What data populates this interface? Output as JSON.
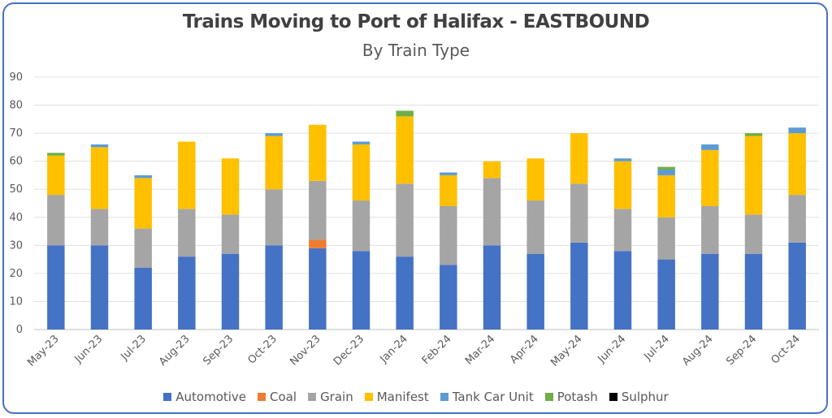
{
  "chart_data": {
    "type": "bar",
    "stacked": true,
    "title": "Trains Moving to Port of Halifax - EASTBOUND",
    "subtitle": "By Train Type",
    "xlabel": "",
    "ylabel": "",
    "ylim": [
      0,
      90
    ],
    "yticks": [
      "0",
      "10",
      "20",
      "30",
      "40",
      "50",
      "60",
      "70",
      "80",
      "90"
    ],
    "grid": true,
    "legend_position": "bottom",
    "categories": [
      "May-23",
      "Jun-23",
      "Jul-23",
      "Aug-23",
      "Sep-23",
      "Oct-23",
      "Nov-23",
      "Dec-23",
      "Jan-24",
      "Feb-24",
      "Mar-24",
      "Apr-24",
      "May-24",
      "Jun-24",
      "Jul-24",
      "Aug-24",
      "Sep-24",
      "Oct-24"
    ],
    "series": [
      {
        "name": "Automotive",
        "color": "#4472c4",
        "values": [
          30,
          30,
          22,
          26,
          27,
          30,
          29,
          28,
          26,
          23,
          30,
          27,
          31,
          28,
          25,
          27,
          27,
          31
        ]
      },
      {
        "name": "Coal",
        "color": "#ed7d31",
        "values": [
          0,
          0,
          0,
          0,
          0,
          0,
          3,
          0,
          0,
          0,
          0,
          0,
          0,
          0,
          0,
          0,
          0,
          0
        ]
      },
      {
        "name": "Grain",
        "color": "#a5a5a5",
        "values": [
          18,
          13,
          14,
          17,
          14,
          20,
          21,
          18,
          26,
          21,
          24,
          19,
          21,
          15,
          15,
          17,
          14,
          17
        ]
      },
      {
        "name": "Manifest",
        "color": "#ffc000",
        "values": [
          14,
          22,
          18,
          24,
          20,
          19,
          20,
          20,
          24,
          11,
          6,
          15,
          18,
          17,
          15,
          20,
          28,
          22
        ]
      },
      {
        "name": "Tank Car Unit",
        "color": "#5b9bd5",
        "values": [
          0,
          1,
          1,
          0,
          0,
          1,
          0,
          1,
          0,
          1,
          0,
          0,
          0,
          1,
          2,
          2,
          0,
          2
        ]
      },
      {
        "name": "Potash",
        "color": "#70ad47",
        "values": [
          1,
          0,
          0,
          0,
          0,
          0,
          0,
          0,
          2,
          0,
          0,
          0,
          0,
          0,
          1,
          0,
          1,
          0
        ]
      },
      {
        "name": "Sulphur",
        "color": "#000000",
        "values": [
          0,
          0,
          0,
          0,
          0,
          0,
          0,
          0,
          0,
          0,
          0,
          0,
          0,
          0,
          0,
          0,
          0,
          0
        ]
      }
    ]
  }
}
